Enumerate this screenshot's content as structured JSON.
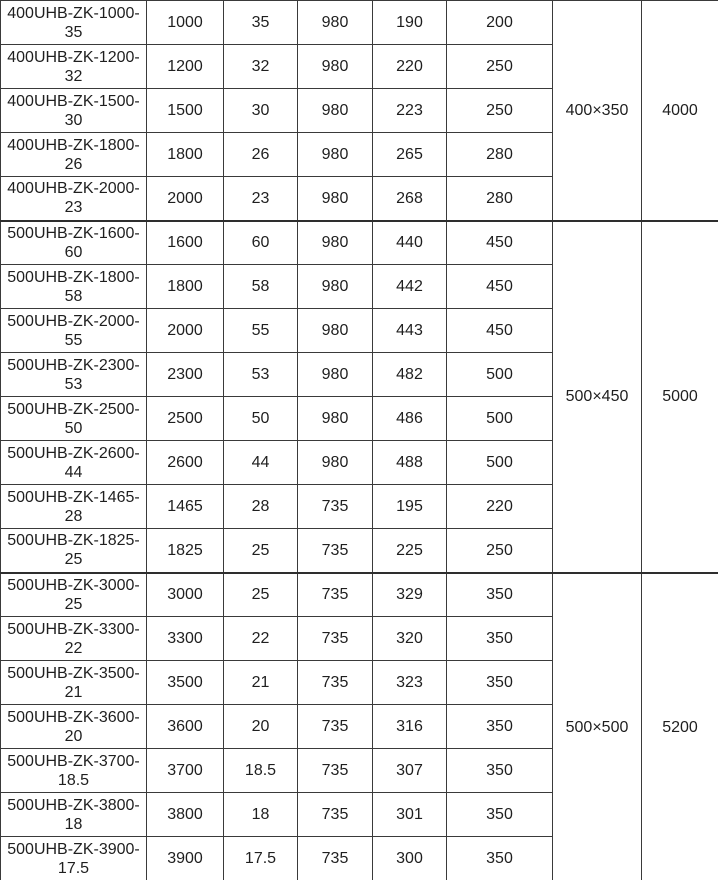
{
  "colors": {
    "border": "#3a3a3a",
    "group_separator": "#2e2e2e",
    "right_edge": "#cfcfcf",
    "text": "#1f1f1f",
    "background": "#ffffff"
  },
  "chart_data": {
    "type": "table",
    "title": "",
    "header_visible": false,
    "notes_layout": "8 columns: model, flow, head, speed, value, value, merged size, merged weight; groups share merged cells via rowspan",
    "groups": [
      {
        "merged": [
          "400×350",
          "4000"
        ],
        "rows": [
          [
            "400UHB-ZK-1000-35",
            "1000",
            "35",
            "980",
            "190",
            "200"
          ],
          [
            "400UHB-ZK-1200-32",
            "1200",
            "32",
            "980",
            "220",
            "250"
          ],
          [
            "400UHB-ZK-1500-30",
            "1500",
            "30",
            "980",
            "223",
            "250"
          ],
          [
            "400UHB-ZK-1800-26",
            "1800",
            "26",
            "980",
            "265",
            "280"
          ],
          [
            "400UHB-ZK-2000-23",
            "2000",
            "23",
            "980",
            "268",
            "280"
          ]
        ]
      },
      {
        "merged": [
          "500×450",
          "5000"
        ],
        "rows": [
          [
            "500UHB-ZK-1600-60",
            "1600",
            "60",
            "980",
            "440",
            "450"
          ],
          [
            "500UHB-ZK-1800-58",
            "1800",
            "58",
            "980",
            "442",
            "450"
          ],
          [
            "500UHB-ZK-2000-55",
            "2000",
            "55",
            "980",
            "443",
            "450"
          ],
          [
            "500UHB-ZK-2300-53",
            "2300",
            "53",
            "980",
            "482",
            "500"
          ],
          [
            "500UHB-ZK-2500-50",
            "2500",
            "50",
            "980",
            "486",
            "500"
          ],
          [
            "500UHB-ZK-2600-44",
            "2600",
            "44",
            "980",
            "488",
            "500"
          ],
          [
            "500UHB-ZK-1465-28",
            "1465",
            "28",
            "735",
            "195",
            "220"
          ],
          [
            "500UHB-ZK-1825-25",
            "1825",
            "25",
            "735",
            "225",
            "250"
          ]
        ]
      },
      {
        "merged": [
          "500×500",
          "5200"
        ],
        "rows": [
          [
            "500UHB-ZK-3000-25",
            "3000",
            "25",
            "735",
            "329",
            "350"
          ],
          [
            "500UHB-ZK-3300-22",
            "3300",
            "22",
            "735",
            "320",
            "350"
          ],
          [
            "500UHB-ZK-3500-21",
            "3500",
            "21",
            "735",
            "323",
            "350"
          ],
          [
            "500UHB-ZK-3600-20",
            "3600",
            "20",
            "735",
            "316",
            "350"
          ],
          [
            "500UHB-ZK-3700-18.5",
            "3700",
            "18.5",
            "735",
            "307",
            "350"
          ],
          [
            "500UHB-ZK-3800-18",
            "3800",
            "18",
            "735",
            "301",
            "350"
          ],
          [
            "500UHB-ZK-3900-17.5",
            "3900",
            "17.5",
            "735",
            "300",
            "350"
          ]
        ]
      }
    ]
  }
}
